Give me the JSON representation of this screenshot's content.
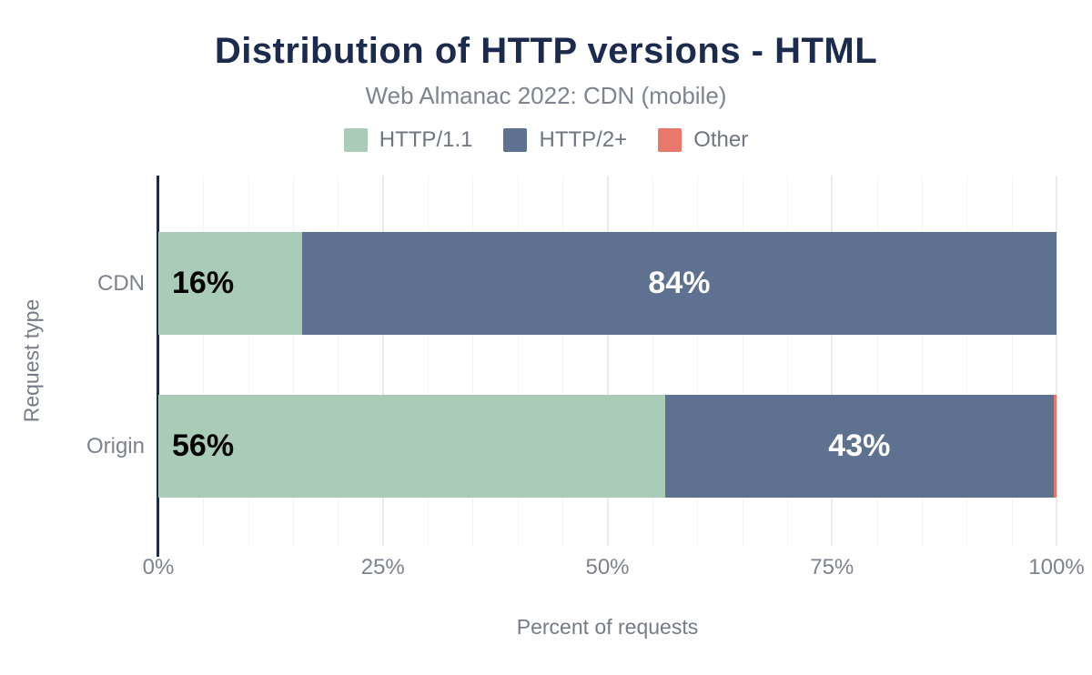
{
  "header": {
    "title": "Distribution of HTTP versions - HTML",
    "subtitle": "Web Almanac 2022: CDN (mobile)"
  },
  "chart_data": {
    "type": "bar",
    "orientation": "horizontal",
    "stacked": true,
    "title": "Distribution of HTTP versions - HTML",
    "subtitle": "Web Almanac 2022: CDN (mobile)",
    "categories": [
      "CDN",
      "Origin"
    ],
    "series": [
      {
        "name": "HTTP/1.1",
        "color": "#a9cbb8",
        "values": [
          16,
          56.4
        ],
        "labels": [
          "16%",
          "56%"
        ],
        "label_color": "#000000",
        "label_align": "start"
      },
      {
        "name": "HTTP/2+",
        "color": "#5f7190",
        "values": [
          84,
          43.3
        ],
        "labels": [
          "84%",
          "43%"
        ],
        "label_color": "#ffffff",
        "label_align": "center"
      },
      {
        "name": "Other",
        "color": "#e8786c",
        "values": [
          0,
          0.3
        ],
        "labels": [
          "",
          ""
        ],
        "label_color": "#000000",
        "label_align": "center"
      }
    ],
    "xlabel": "Percent of requests",
    "ylabel": "Request type",
    "x_ticks": [
      "0%",
      "25%",
      "50%",
      "75%",
      "100%"
    ],
    "x_tick_values": [
      0,
      25,
      50,
      75,
      100
    ],
    "xlim": [
      0,
      100
    ],
    "grid": "vertical minor lines every 5%, emphasized every 25%",
    "legend_position": "top-center"
  },
  "colors": {
    "title_navy": "#1c2b4d",
    "axis_line_navy": "#1e2a44",
    "subtitle_gray": "#7d848f",
    "label_gray": "#7d828c",
    "grid_minor": "#f3f4f6",
    "grid_major": "#e9ebef",
    "background": "#ffffff"
  }
}
